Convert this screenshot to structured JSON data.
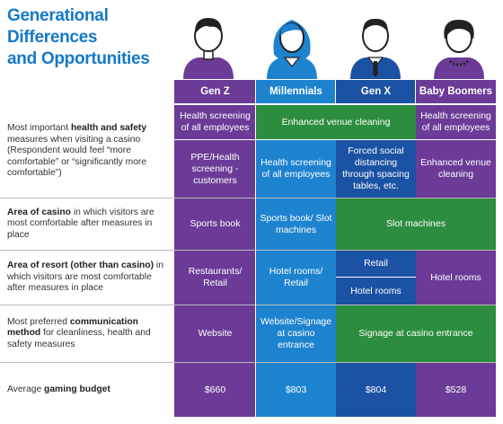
{
  "title": {
    "line1": "Generational Differences",
    "line2": "and Opportunities"
  },
  "colors": {
    "purple": "#6b3b97",
    "blue": "#1e83cf",
    "navy": "#1b52a3",
    "green": "#2d8d3e",
    "title": "#1479c9"
  },
  "headers": [
    "Gen Z",
    "Millennials",
    "Gen X",
    "Baby Boomers"
  ],
  "rows": {
    "health": {
      "label_pre": "Most important ",
      "label_bold": "health and safety",
      "label_post": " measures when visiting a casino (Respondent would feel “more comfortable” or “significantly more comfortable”)",
      "genz_1": "Health screening of all employees",
      "merged_1": "Enhanced venue cleaning",
      "boomers_1": "Health screening of all employees",
      "genz_2": "PPE/Health screening - customers",
      "millennials_2": "Health screening of all employees",
      "genx_2": "Forced social distancing through spacing tables, etc.",
      "boomers_2": "Enhanced venue cleaning"
    },
    "casino_area": {
      "label_bold": "Area of casino",
      "label_post": " in which visitors are most comfortable  after measures in place",
      "genz": "Sports book",
      "millennials": "Sports book/ Slot machines",
      "merged": "Slot machines"
    },
    "resort_area": {
      "label_bold": "Area of resort (other than casino)",
      "label_post": " in which visitors are most comfortable after measures in place",
      "genz": "Restaurants/ Retail",
      "millennials": "Hotel rooms/ Retail",
      "genx_top": "Retail",
      "genx_bottom": "Hotel rooms",
      "boomers": "Hotel rooms"
    },
    "communication": {
      "label_pre": "Most preferred ",
      "label_bold": "communication method",
      "label_post": " for cleanliness, health and safety measures",
      "genz": "Website",
      "millennials": "Website/Signage at casino entrance",
      "merged": "Signage at casino entrance"
    },
    "budget": {
      "label_pre": "Average ",
      "label_bold": "gaming budget",
      "genz": "$660",
      "millennials": "$803",
      "genx": "$804",
      "boomers": "$528"
    }
  }
}
